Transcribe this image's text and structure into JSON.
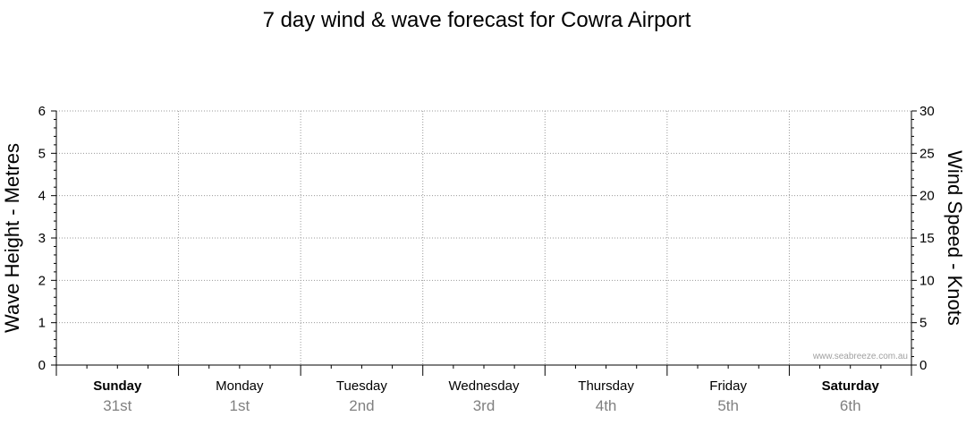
{
  "chart_data": {
    "type": "line",
    "title": "7 day wind & wave forecast for Cowra Airport",
    "ylabel_left": "Wave Height - Metres",
    "ylabel_right": "Wind Speed - Knots",
    "ylim_left": [
      0,
      6
    ],
    "ylim_right": [
      0,
      30
    ],
    "yticks_left": [
      "0",
      "1",
      "2",
      "3",
      "4",
      "5",
      "6"
    ],
    "yticks_right": [
      "0",
      "5",
      "10",
      "15",
      "20",
      "25",
      "30"
    ],
    "days": [
      {
        "name": "Sunday",
        "date": "31st",
        "bold": true
      },
      {
        "name": "Monday",
        "date": "1st",
        "bold": false
      },
      {
        "name": "Tuesday",
        "date": "2nd",
        "bold": false
      },
      {
        "name": "Wednesday",
        "date": "3rd",
        "bold": false
      },
      {
        "name": "Thursday",
        "date": "4th",
        "bold": false
      },
      {
        "name": "Friday",
        "date": "5th",
        "bold": false
      },
      {
        "name": "Saturday",
        "date": "6th",
        "bold": true
      }
    ],
    "series": [],
    "grid": true,
    "watermark": "www.seabreeze.com.au",
    "colors": {
      "grid": "#999999",
      "axis": "#000000",
      "date": "#808080",
      "watermark": "#a0a0a0"
    }
  }
}
